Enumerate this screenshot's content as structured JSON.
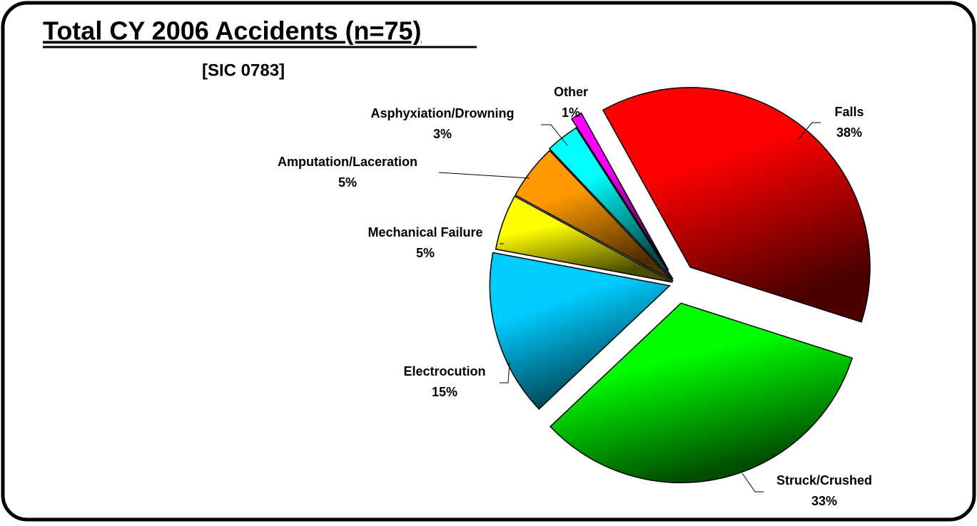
{
  "chart_data": {
    "type": "pie",
    "title": "Total CY 2006 Accidents (n=75)",
    "subtitle": "[SIC 0783]",
    "categories": [
      "Falls",
      "Struck/Crushed",
      "Electrocution",
      "Mechanical Failure",
      "Amputation/Laceration",
      "Asphyxiation/Drowning",
      "Other"
    ],
    "values": [
      38,
      33,
      15,
      5,
      5,
      3,
      1
    ],
    "value_labels": [
      "38%",
      "33%",
      "15%",
      "5%",
      "5%",
      "3%",
      "1%"
    ],
    "colors": [
      "#ff0000",
      "#00ff00",
      "#00ccff",
      "#ffff00",
      "#ff9900",
      "#00ffff",
      "#ff00ff"
    ]
  }
}
